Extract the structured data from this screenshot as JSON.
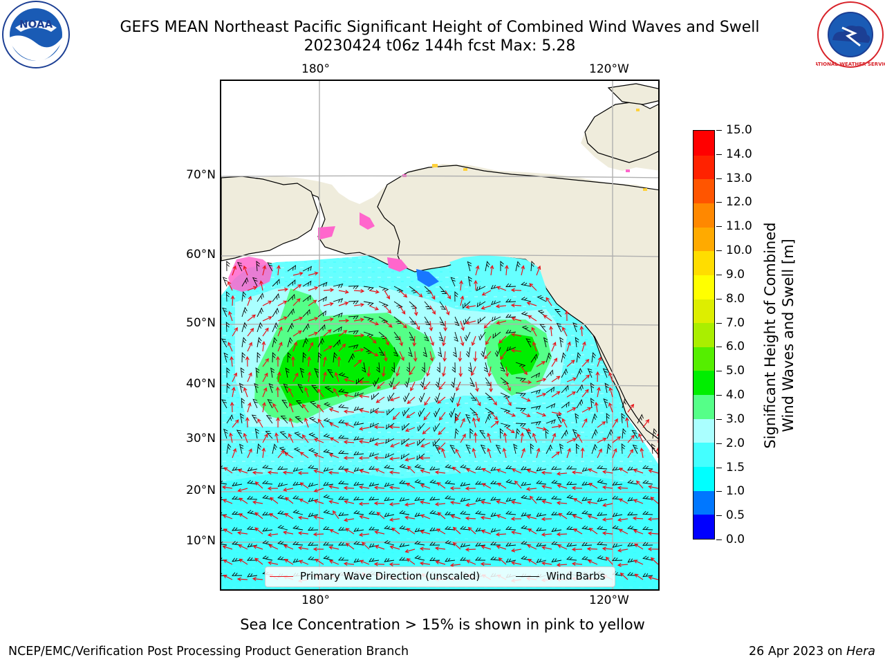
{
  "title": {
    "line1": "GEFS MEAN Northeast Pacific Significant Height of Combined Wind Waves and Swell",
    "line2": "20230424 t06z 144h fcst   Max: 5.28"
  },
  "map": {
    "lon_labels_top": [
      "180°",
      "120°W"
    ],
    "lon_labels_bottom": [
      "180°",
      "120°W"
    ],
    "lat_labels": [
      "70°N",
      "60°N",
      "50°N",
      "40°N",
      "30°N",
      "20°N",
      "10°N"
    ],
    "colors": {
      "land": "#efecdc",
      "coast": "#000000",
      "grid": "#b0b0b0",
      "wave_arrow": "#e8141b",
      "wind_barb": "#000000",
      "sea_ice_pink": "#ff66cc",
      "sea_ice_yellow": "#ffd13a"
    }
  },
  "legend": {
    "items": [
      {
        "label": "Primary Wave Direction (unscaled)",
        "color": "#e8141b"
      },
      {
        "label": "Wind Barbs",
        "color": "#000000"
      }
    ]
  },
  "colorbar": {
    "label_line1": "Significant Height of Combined",
    "label_line2": "Wind Waves and Swell [m]",
    "ticks": [
      "0.0",
      "0.5",
      "1.0",
      "1.5",
      "2.0",
      "3.0",
      "4.0",
      "5.0",
      "6.0",
      "7.0",
      "8.0",
      "9.0",
      "10.0",
      "11.0",
      "12.0",
      "13.0",
      "14.0",
      "15.0"
    ],
    "colors": [
      "#0000ff",
      "#0077ff",
      "#00ffff",
      "#44ffff",
      "#aaffff",
      "#55ff88",
      "#00ee00",
      "#55ee00",
      "#aaee00",
      "#ddee00",
      "#ffff00",
      "#ffdd00",
      "#ffaa00",
      "#ff8800",
      "#ff5500",
      "#ff2200",
      "#ff0000"
    ]
  },
  "note": "Sea Ice Concentration > 15% is shown in pink to yellow",
  "footer": {
    "left": "NCEP/EMC/Verification Post Processing Product Generation Branch",
    "right_date": "26 Apr 2023 on ",
    "right_machine": "Hera"
  },
  "logos": {
    "noaa_text": "NOAA",
    "nws_text": "NATIONAL WEATHER SERVICE"
  }
}
